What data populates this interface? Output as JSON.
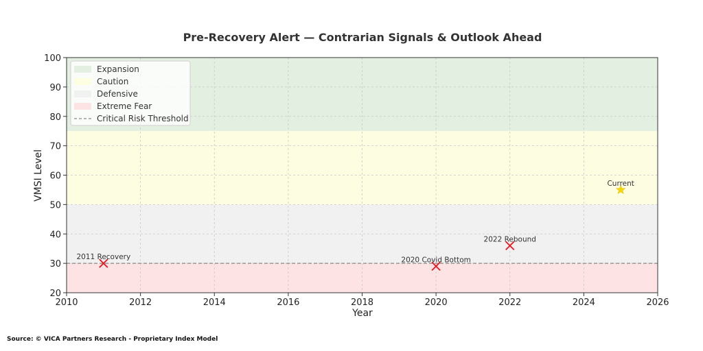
{
  "chart_data": {
    "type": "scatter",
    "title": "Pre-Recovery Alert — Contrarian Signals & Outlook Ahead",
    "xlabel": "Year",
    "ylabel": "VMSI Level",
    "xlim": [
      2010,
      2026
    ],
    "ylim": [
      20,
      100
    ],
    "xticks": [
      2010,
      2012,
      2014,
      2016,
      2018,
      2020,
      2022,
      2024,
      2026
    ],
    "yticks": [
      20,
      30,
      40,
      50,
      60,
      70,
      80,
      90,
      100
    ],
    "grid": true,
    "legend_position": "top-left",
    "zones": [
      {
        "name": "Expansion",
        "from": 75,
        "to": 100,
        "color": "#e3f0e1"
      },
      {
        "name": "Caution",
        "from": 50,
        "to": 75,
        "color": "#fdfde2"
      },
      {
        "name": "Defensive",
        "from": 30,
        "to": 50,
        "color": "#f1f1f1"
      },
      {
        "name": "Extreme Fear",
        "from": 20,
        "to": 30,
        "color": "#fde3e4"
      }
    ],
    "threshold": {
      "name": "Critical Risk Threshold",
      "value": 30,
      "color": "#888888"
    },
    "signals": [
      {
        "x": 2011,
        "y": 30,
        "label": "2011 Recovery",
        "marker": "x",
        "color": "#e8141e"
      },
      {
        "x": 2020,
        "y": 29,
        "label": "2020 Covid Bottom",
        "marker": "x",
        "color": "#e8141e"
      },
      {
        "x": 2022,
        "y": 36,
        "label": "2022 Rebound",
        "marker": "x",
        "color": "#e8141e"
      }
    ],
    "current": {
      "x": 2025,
      "y": 55,
      "label": "Current",
      "marker": "star",
      "color": "#f5d60a"
    }
  },
  "source": "Source: © VICA Partners Research - Proprietary Index Model"
}
